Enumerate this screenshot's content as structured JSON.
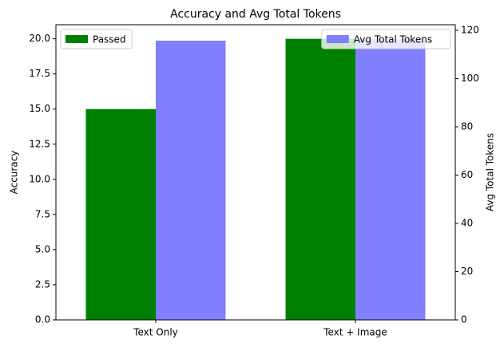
{
  "chart_data": {
    "type": "bar",
    "title": "Accuracy and Avg Total Tokens",
    "categories": [
      "Text Only",
      "Text + Image"
    ],
    "series": [
      {
        "name": "Passed",
        "color": "#008000",
        "values": [
          15,
          20
        ]
      },
      {
        "name": "Avg Total Tokens",
        "color": "#8080ff",
        "values": [
          115.7,
          116.3
        ],
        "axis": "y2"
      }
    ],
    "y_label": "Accuracy",
    "y2_label": "Avg Total Tokens",
    "ylim": [
      0,
      21
    ],
    "yticks": [
      {
        "value": 0,
        "label": "0.0"
      },
      {
        "value": 2.5,
        "label": "2.5"
      },
      {
        "value": 5,
        "label": "5.0"
      },
      {
        "value": 7.5,
        "label": "7.5"
      },
      {
        "value": 10,
        "label": "10.0"
      },
      {
        "value": 12.5,
        "label": "12.5"
      },
      {
        "value": 15,
        "label": "15.0"
      },
      {
        "value": 17.5,
        "label": "17.5"
      },
      {
        "value": 20,
        "label": "20.0"
      }
    ],
    "y2lim": [
      0,
      122.3
    ],
    "y2ticks": [
      0,
      20,
      40,
      60,
      80,
      100,
      120
    ],
    "legend": [
      "upper left",
      "upper right"
    ]
  }
}
